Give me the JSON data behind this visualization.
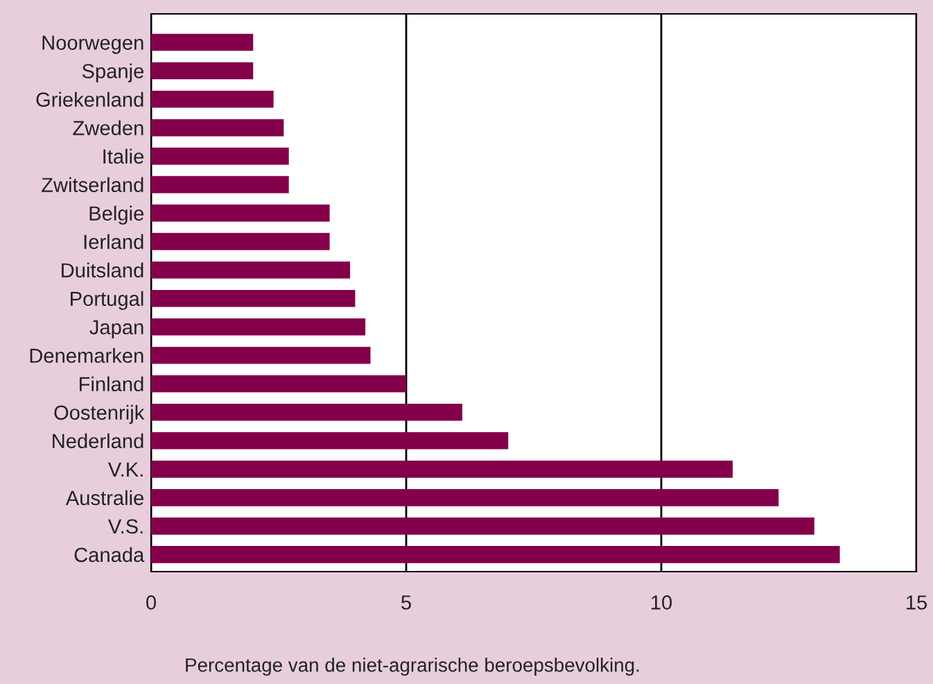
{
  "chart_data": {
    "type": "bar",
    "orientation": "horizontal",
    "categories": [
      "Noorwegen",
      "Spanje",
      "Griekenland",
      "Zweden",
      "Italie",
      "Zwitserland",
      "Belgie",
      "Ierland",
      "Duitsland",
      "Portugal",
      "Japan",
      "Denemarken",
      "Finland",
      "Oostenrijk",
      "Nederland",
      "V.K.",
      "Australie",
      "V.S.",
      "Canada"
    ],
    "values": [
      2.0,
      2.0,
      2.4,
      2.6,
      2.7,
      2.7,
      3.5,
      3.5,
      3.9,
      4.0,
      4.2,
      4.3,
      5.0,
      6.1,
      7.0,
      11.4,
      12.3,
      13.0,
      13.5
    ],
    "color": "#84004a",
    "xlim": [
      0,
      15
    ],
    "xticks": [
      0,
      5,
      10,
      15
    ],
    "grid": "x",
    "xlabel": "Percentage van de niet-agrarische beroepsbevolking."
  }
}
